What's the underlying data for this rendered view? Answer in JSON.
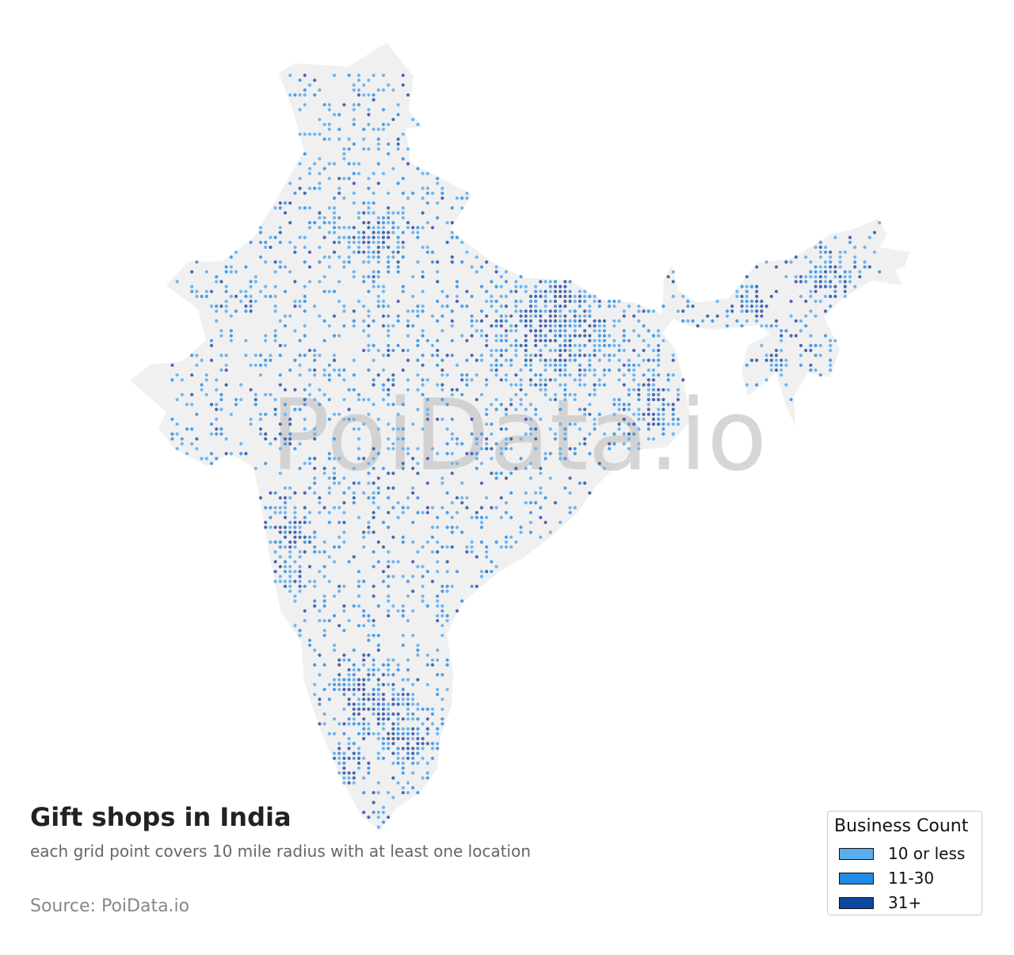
{
  "map": {
    "title": "Gift shops in India",
    "subtitle": "each grid point covers 10 mile radius with at least one location",
    "source": "Source: PoiData.io",
    "watermark": "PoiData.io",
    "land_color": "#f0f0f0",
    "watermark_color": "#c8c8c8",
    "legend": {
      "title": "Business Count",
      "items": [
        {
          "label": "10 or less",
          "color": "#5aaeee"
        },
        {
          "label": "11-30",
          "color": "#1f8be8"
        },
        {
          "label": "31+",
          "color": "#0b479f"
        }
      ]
    },
    "dot_colors": [
      "#6db6f0",
      "#4a9de8",
      "#4a68b0"
    ]
  }
}
